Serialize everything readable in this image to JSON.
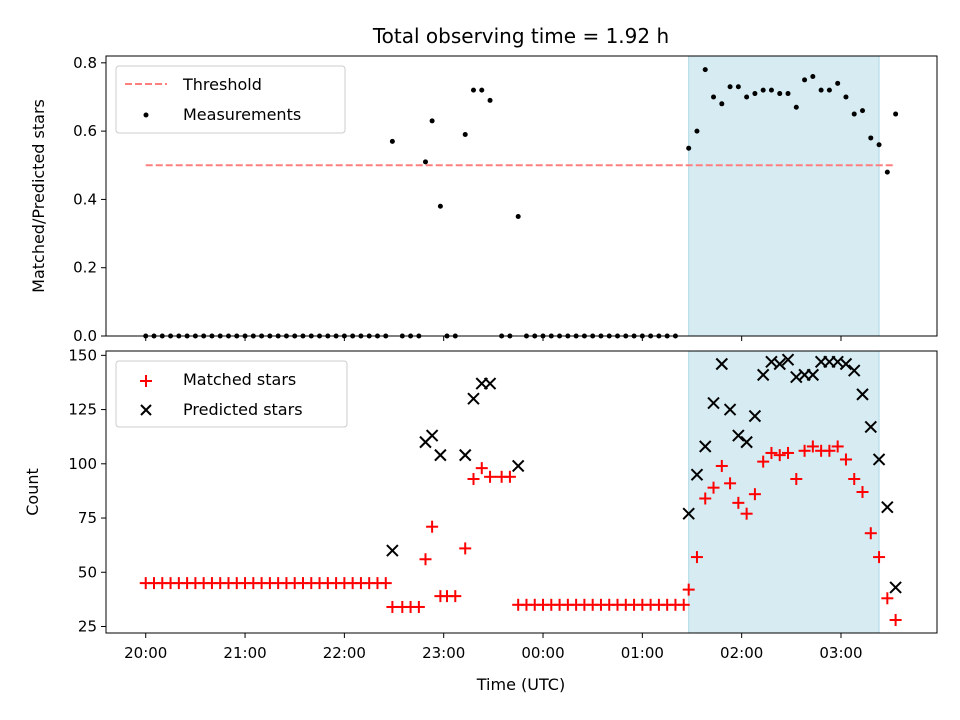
{
  "chart_data": [
    {
      "type": "scatter",
      "title": "Total observing time = 1.92 h",
      "xlabel": "",
      "ylabel": "Matched/Predicted stars",
      "xlim": [
        "19:36",
        "03:58"
      ],
      "ylim": [
        0,
        0.82
      ],
      "yticks": [
        0.0,
        0.2,
        0.4,
        0.6,
        0.8
      ],
      "ytick_labels": [
        "0.0",
        "0.2",
        "0.4",
        "0.6",
        "0.8"
      ],
      "grid": false,
      "legend": "upper left",
      "shaded_interval": {
        "start": "01:28",
        "end": "03:23",
        "color": "#add8e6"
      },
      "threshold": {
        "name": "Threshold",
        "value": 0.5,
        "x_range": [
          "20:00",
          "03:33"
        ],
        "color": "#ff7f7f",
        "style": "dashed"
      },
      "series": [
        {
          "name": "Measurements",
          "marker": "dot",
          "color": "#000000",
          "points": [
            [
              "20:00",
              0
            ],
            [
              "20:05",
              0
            ],
            [
              "20:10",
              0
            ],
            [
              "20:15",
              0
            ],
            [
              "20:20",
              0
            ],
            [
              "20:25",
              0
            ],
            [
              "20:30",
              0
            ],
            [
              "20:35",
              0
            ],
            [
              "20:40",
              0
            ],
            [
              "20:45",
              0
            ],
            [
              "20:50",
              0
            ],
            [
              "20:55",
              0
            ],
            [
              "21:00",
              0
            ],
            [
              "21:05",
              0
            ],
            [
              "21:10",
              0
            ],
            [
              "21:15",
              0
            ],
            [
              "21:20",
              0
            ],
            [
              "21:25",
              0
            ],
            [
              "21:30",
              0
            ],
            [
              "21:35",
              0
            ],
            [
              "21:40",
              0
            ],
            [
              "21:45",
              0
            ],
            [
              "21:50",
              0
            ],
            [
              "21:55",
              0
            ],
            [
              "22:00",
              0
            ],
            [
              "22:05",
              0
            ],
            [
              "22:10",
              0
            ],
            [
              "22:15",
              0
            ],
            [
              "22:20",
              0
            ],
            [
              "22:25",
              0
            ],
            [
              "22:29",
              0.57
            ],
            [
              "22:35",
              0
            ],
            [
              "22:40",
              0
            ],
            [
              "22:45",
              0
            ],
            [
              "22:49",
              0.51
            ],
            [
              "22:53",
              0.63
            ],
            [
              "22:58",
              0.38
            ],
            [
              "23:02",
              0
            ],
            [
              "23:07",
              0
            ],
            [
              "23:13",
              0.59
            ],
            [
              "23:18",
              0.72
            ],
            [
              "23:23",
              0.72
            ],
            [
              "23:28",
              0.69
            ],
            [
              "23:35",
              0
            ],
            [
              "23:40",
              0
            ],
            [
              "23:45",
              0.35
            ],
            [
              "23:50",
              0
            ],
            [
              "23:55",
              0
            ],
            [
              "00:00",
              0
            ],
            [
              "00:05",
              0
            ],
            [
              "00:10",
              0
            ],
            [
              "00:15",
              0
            ],
            [
              "00:20",
              0
            ],
            [
              "00:25",
              0
            ],
            [
              "00:30",
              0
            ],
            [
              "00:35",
              0
            ],
            [
              "00:40",
              0
            ],
            [
              "00:45",
              0
            ],
            [
              "00:50",
              0
            ],
            [
              "00:55",
              0
            ],
            [
              "01:00",
              0
            ],
            [
              "01:05",
              0
            ],
            [
              "01:10",
              0
            ],
            [
              "01:15",
              0
            ],
            [
              "01:20",
              0
            ],
            [
              "01:28",
              0.55
            ],
            [
              "01:33",
              0.6
            ],
            [
              "01:38",
              0.78
            ],
            [
              "01:43",
              0.7
            ],
            [
              "01:48",
              0.68
            ],
            [
              "01:53",
              0.73
            ],
            [
              "01:58",
              0.73
            ],
            [
              "02:03",
              0.7
            ],
            [
              "02:08",
              0.71
            ],
            [
              "02:13",
              0.72
            ],
            [
              "02:18",
              0.72
            ],
            [
              "02:23",
              0.71
            ],
            [
              "02:28",
              0.71
            ],
            [
              "02:33",
              0.67
            ],
            [
              "02:38",
              0.75
            ],
            [
              "02:43",
              0.76
            ],
            [
              "02:48",
              0.72
            ],
            [
              "02:53",
              0.72
            ],
            [
              "02:58",
              0.74
            ],
            [
              "03:03",
              0.7
            ],
            [
              "03:08",
              0.65
            ],
            [
              "03:13",
              0.66
            ],
            [
              "03:18",
              0.58
            ],
            [
              "03:23",
              0.56
            ],
            [
              "03:28",
              0.48
            ],
            [
              "03:33",
              0.65
            ]
          ]
        }
      ]
    },
    {
      "type": "scatter",
      "title": "",
      "xlabel": "Time (UTC)",
      "ylabel": "Count",
      "xlim": [
        "19:36",
        "03:58"
      ],
      "ylim": [
        22,
        152
      ],
      "yticks": [
        25,
        50,
        75,
        100,
        125,
        150
      ],
      "ytick_labels": [
        "25",
        "50",
        "75",
        "100",
        "125",
        "150"
      ],
      "xticks": [
        "20:00",
        "21:00",
        "22:00",
        "23:00",
        "00:00",
        "01:00",
        "02:00",
        "03:00"
      ],
      "grid": false,
      "legend": "upper left",
      "shaded_interval": {
        "start": "01:28",
        "end": "03:23",
        "color": "#add8e6"
      },
      "series": [
        {
          "name": "Matched stars",
          "marker": "plus",
          "color": "#ff0000",
          "points": [
            [
              "20:00",
              45
            ],
            [
              "20:05",
              45
            ],
            [
              "20:10",
              45
            ],
            [
              "20:15",
              45
            ],
            [
              "20:20",
              45
            ],
            [
              "20:25",
              45
            ],
            [
              "20:30",
              45
            ],
            [
              "20:35",
              45
            ],
            [
              "20:40",
              45
            ],
            [
              "20:45",
              45
            ],
            [
              "20:50",
              45
            ],
            [
              "20:55",
              45
            ],
            [
              "21:00",
              45
            ],
            [
              "21:05",
              45
            ],
            [
              "21:10",
              45
            ],
            [
              "21:15",
              45
            ],
            [
              "21:20",
              45
            ],
            [
              "21:25",
              45
            ],
            [
              "21:30",
              45
            ],
            [
              "21:35",
              45
            ],
            [
              "21:40",
              45
            ],
            [
              "21:45",
              45
            ],
            [
              "21:50",
              45
            ],
            [
              "21:55",
              45
            ],
            [
              "22:00",
              45
            ],
            [
              "22:05",
              45
            ],
            [
              "22:10",
              45
            ],
            [
              "22:15",
              45
            ],
            [
              "22:20",
              45
            ],
            [
              "22:25",
              45
            ],
            [
              "22:29",
              34
            ],
            [
              "22:35",
              34
            ],
            [
              "22:40",
              34
            ],
            [
              "22:45",
              34
            ],
            [
              "22:49",
              56
            ],
            [
              "22:53",
              71
            ],
            [
              "22:58",
              39
            ],
            [
              "23:02",
              39
            ],
            [
              "23:07",
              39
            ],
            [
              "23:13",
              61
            ],
            [
              "23:18",
              93
            ],
            [
              "23:23",
              98
            ],
            [
              "23:28",
              94
            ],
            [
              "23:35",
              94
            ],
            [
              "23:40",
              94
            ],
            [
              "23:45",
              35
            ],
            [
              "23:50",
              35
            ],
            [
              "23:55",
              35
            ],
            [
              "00:00",
              35
            ],
            [
              "00:05",
              35
            ],
            [
              "00:10",
              35
            ],
            [
              "00:15",
              35
            ],
            [
              "00:20",
              35
            ],
            [
              "00:25",
              35
            ],
            [
              "00:30",
              35
            ],
            [
              "00:35",
              35
            ],
            [
              "00:40",
              35
            ],
            [
              "00:45",
              35
            ],
            [
              "00:50",
              35
            ],
            [
              "00:55",
              35
            ],
            [
              "01:00",
              35
            ],
            [
              "01:05",
              35
            ],
            [
              "01:10",
              35
            ],
            [
              "01:15",
              35
            ],
            [
              "01:20",
              35
            ],
            [
              "01:25",
              35
            ],
            [
              "01:28",
              42
            ],
            [
              "01:33",
              57
            ],
            [
              "01:38",
              84
            ],
            [
              "01:43",
              89
            ],
            [
              "01:48",
              99
            ],
            [
              "01:53",
              91
            ],
            [
              "01:58",
              82
            ],
            [
              "02:03",
              77
            ],
            [
              "02:08",
              86
            ],
            [
              "02:13",
              101
            ],
            [
              "02:18",
              105
            ],
            [
              "02:23",
              104
            ],
            [
              "02:28",
              105
            ],
            [
              "02:33",
              93
            ],
            [
              "02:38",
              106
            ],
            [
              "02:43",
              108
            ],
            [
              "02:48",
              106
            ],
            [
              "02:53",
              106
            ],
            [
              "02:58",
              108
            ],
            [
              "03:03",
              102
            ],
            [
              "03:08",
              93
            ],
            [
              "03:13",
              87
            ],
            [
              "03:18",
              68
            ],
            [
              "03:23",
              57
            ],
            [
              "03:28",
              38
            ],
            [
              "03:33",
              28
            ]
          ]
        },
        {
          "name": "Predicted stars",
          "marker": "x",
          "color": "#000000",
          "points": [
            [
              "22:29",
              60
            ],
            [
              "22:49",
              110
            ],
            [
              "22:53",
              113
            ],
            [
              "22:58",
              104
            ],
            [
              "23:13",
              104
            ],
            [
              "23:18",
              130
            ],
            [
              "23:23",
              137
            ],
            [
              "23:28",
              137
            ],
            [
              "23:45",
              99
            ],
            [
              "01:28",
              77
            ],
            [
              "01:33",
              95
            ],
            [
              "01:38",
              108
            ],
            [
              "01:43",
              128
            ],
            [
              "01:48",
              146
            ],
            [
              "01:53",
              125
            ],
            [
              "01:58",
              113
            ],
            [
              "02:03",
              110
            ],
            [
              "02:08",
              122
            ],
            [
              "02:13",
              141
            ],
            [
              "02:18",
              147
            ],
            [
              "02:23",
              146
            ],
            [
              "02:28",
              148
            ],
            [
              "02:33",
              140
            ],
            [
              "02:38",
              141
            ],
            [
              "02:43",
              141
            ],
            [
              "02:48",
              147
            ],
            [
              "02:53",
              147
            ],
            [
              "02:58",
              147
            ],
            [
              "03:03",
              146
            ],
            [
              "03:08",
              143
            ],
            [
              "03:13",
              132
            ],
            [
              "03:18",
              117
            ],
            [
              "03:23",
              102
            ],
            [
              "03:28",
              80
            ],
            [
              "03:33",
              43
            ]
          ]
        }
      ]
    }
  ]
}
